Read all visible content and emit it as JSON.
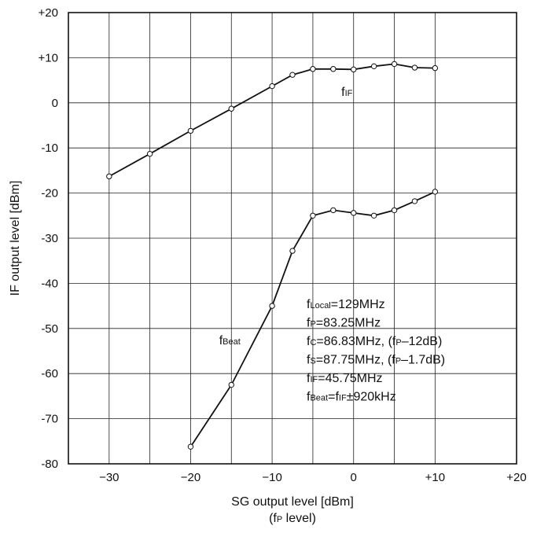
{
  "chart_data": {
    "type": "line",
    "xlabel": "SG output level [dBm]",
    "xlabel2_pre": "(f",
    "xlabel2_sub": "P",
    "xlabel2_post": " level)",
    "ylabel": "IF output level [dBm]",
    "xlim": [
      -35,
      20
    ],
    "ylim": [
      -80,
      20
    ],
    "grid": true,
    "xticks": [
      -30,
      -20,
      -10,
      0,
      10,
      20
    ],
    "xtick_labels": [
      "−30",
      "−20",
      "−10",
      "0",
      "+10",
      "+20"
    ],
    "yticks": [
      20,
      10,
      0,
      -10,
      -20,
      -30,
      -40,
      -50,
      -60,
      -70,
      -80
    ],
    "ytick_labels": [
      "+20",
      "+10",
      "0",
      "-10",
      "-20",
      "-30",
      "-40",
      "-50",
      "-60",
      "-70",
      "-80"
    ],
    "series": [
      {
        "label_main": "f",
        "label_sub": "IF",
        "x": [
          -30,
          -25,
          -20,
          -15,
          -10,
          -7.5,
          -5,
          -2.5,
          0,
          2.5,
          5,
          7.5,
          10
        ],
        "y": [
          -16.3,
          -11.3,
          -6.2,
          -1.3,
          3.7,
          6.2,
          7.5,
          7.5,
          7.4,
          8.1,
          8.6,
          7.8,
          7.7
        ]
      },
      {
        "label_main": "f",
        "label_sub": "Beat",
        "x": [
          -20,
          -15,
          -10,
          -7.5,
          -5,
          -2.5,
          0,
          2.5,
          5,
          7.5,
          10
        ],
        "y": [
          -76.2,
          -62.5,
          -45.0,
          -32.8,
          -25.0,
          -23.8,
          -24.4,
          -25.0,
          -23.8,
          -21.8,
          -19.7
        ]
      }
    ],
    "conditions": [
      {
        "parts": [
          [
            "f",
            ""
          ],
          [
            "Local",
            "sub"
          ],
          [
            "=129MHz",
            ""
          ]
        ]
      },
      {
        "parts": [
          [
            "f",
            ""
          ],
          [
            "P",
            "sub"
          ],
          [
            "=83.25MHz",
            ""
          ]
        ]
      },
      {
        "parts": [
          [
            "f",
            ""
          ],
          [
            "C",
            "sub"
          ],
          [
            "=86.83MHz, (f",
            ""
          ],
          [
            "P",
            "sub"
          ],
          [
            "–12dB)",
            ""
          ]
        ]
      },
      {
        "parts": [
          [
            "f",
            ""
          ],
          [
            "S",
            "sub"
          ],
          [
            "=87.75MHz, (f",
            ""
          ],
          [
            "P",
            "sub"
          ],
          [
            "–1.7dB)",
            ""
          ]
        ]
      },
      {
        "parts": [
          [
            "f",
            ""
          ],
          [
            "IF",
            "sub"
          ],
          [
            "=45.75MHz",
            ""
          ]
        ]
      },
      {
        "parts": [
          [
            "f",
            ""
          ],
          [
            "Beat",
            "sub"
          ],
          [
            "=f",
            ""
          ],
          [
            "IF",
            "sub"
          ],
          [
            "±920kHz",
            ""
          ]
        ]
      }
    ]
  }
}
